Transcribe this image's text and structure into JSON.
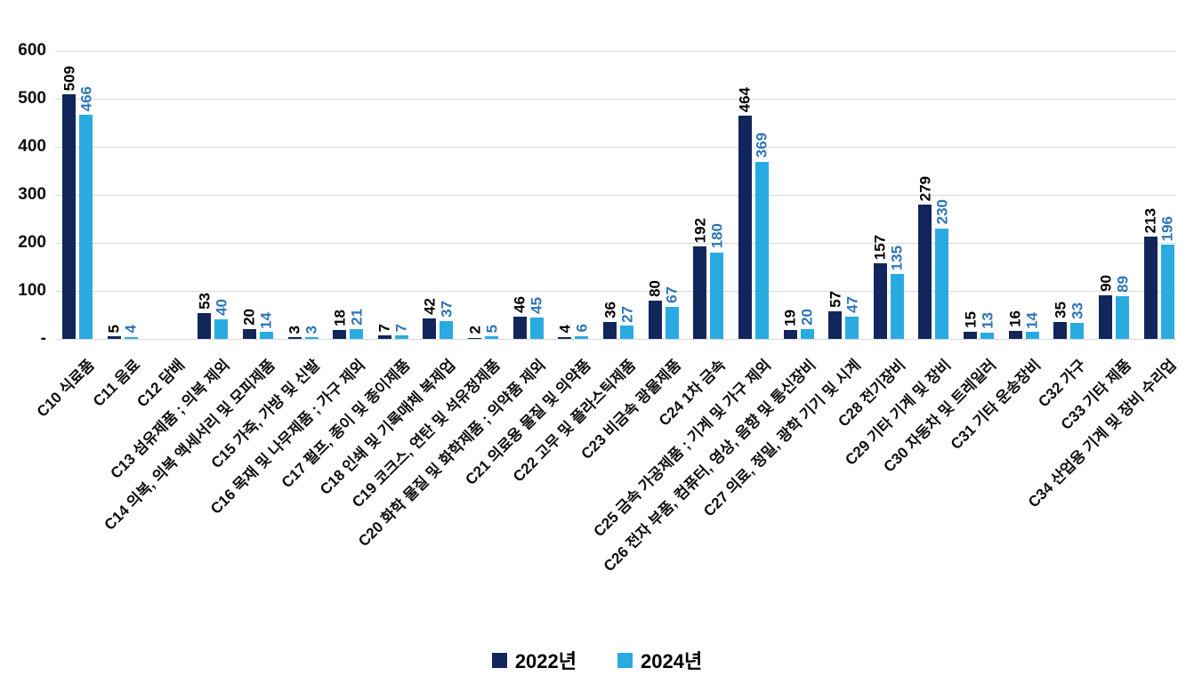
{
  "chart_data": {
    "type": "bar",
    "title": "",
    "xlabel": "",
    "ylabel": "",
    "ylim": [
      0,
      600
    ],
    "grid": true,
    "legend_position": "bottom",
    "yticks": [
      {
        "label": "600",
        "value": 600
      },
      {
        "label": "500",
        "value": 500
      },
      {
        "label": "400",
        "value": 400
      },
      {
        "label": "300",
        "value": 300
      },
      {
        "label": "200",
        "value": 200
      },
      {
        "label": "100",
        "value": 100
      },
      {
        "label": "-",
        "value": 0
      }
    ],
    "categories": [
      "C10 식료품",
      "C11 음료",
      "C12 담배",
      "C13 섬유제품 ; 의복 제외",
      "C14 의복, 의복 액세서리 및 모피제품",
      "C15 가죽, 가방 및 신발",
      "C16 목재 및 나무제품 ; 가구 제외",
      "C17 펄프, 종이 및 종이제품",
      "C18 인쇄 및 기록매체 복제업",
      "C19 코크스, 연탄 및 석유정제품",
      "C20 화학 물질 및 화학제품 ; 의약품 제외",
      "C21 의료용 물질 및 의약품",
      "C22 고무 및 플라스틱제품",
      "C23 비금속 광물제품",
      "C24 1차 금속",
      "C25 금속 가공제품 ; 기계 및 가구 제외",
      "C26 전자 부품, 컴퓨터, 영상, 음향 및 통신장비",
      "C27 의료, 정밀, 광학 기기 및 시계",
      "C28 전기장비",
      "C29 기타 기계 및 장비",
      "C30 자동차 및 트레일러",
      "C31 기타 운송장비",
      "C32 가구",
      "C33 기타 제품",
      "C34 산업용 기계 및 장비 수리업"
    ],
    "series": [
      {
        "name": "2022년",
        "color": "#12265c",
        "label_color": "#000000",
        "values": [
          509,
          5,
          0,
          53,
          20,
          3,
          18,
          7,
          42,
          2,
          46,
          4,
          36,
          80,
          192,
          464,
          19,
          57,
          157,
          279,
          15,
          16,
          35,
          90,
          213
        ]
      },
      {
        "name": "2024년",
        "color": "#29abe2",
        "label_color": "#2e75b6",
        "values": [
          466,
          4,
          0,
          40,
          14,
          3,
          21,
          7,
          37,
          5,
          45,
          6,
          27,
          67,
          180,
          369,
          20,
          47,
          135,
          230,
          13,
          14,
          33,
          89,
          196
        ]
      }
    ]
  },
  "legend": {
    "items": [
      {
        "label": "2022년",
        "color": "#12265c"
      },
      {
        "label": "2024년",
        "color": "#29abe2"
      }
    ]
  }
}
